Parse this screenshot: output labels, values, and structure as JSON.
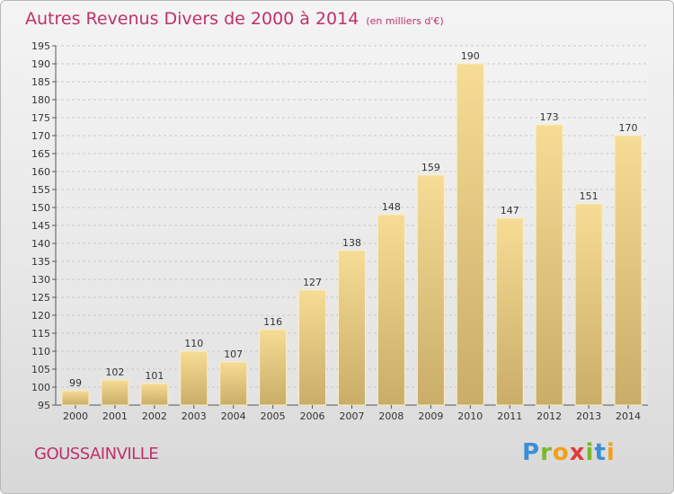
{
  "title": "Autres Revenus Divers de 2000 à 2014",
  "unit": "(en milliers d'€)",
  "place": "GOUSSAINVILLE",
  "logo": {
    "letters": [
      "P",
      "r",
      "o",
      "x",
      "i",
      "t",
      "i"
    ],
    "colors": [
      "#3a8fd6",
      "#7ab82a",
      "#f2a01a",
      "#e23b3b",
      "#7ab82a",
      "#3a8fd6",
      "#f2a01a"
    ]
  },
  "colors": {
    "title": "#c0306a",
    "bar_top": "#f6dc95",
    "bar_bottom": "#c9ad68"
  },
  "chart_data": {
    "type": "bar",
    "title": "Autres Revenus Divers de 2000 à 2014",
    "subtitle": "(en milliers d'€)",
    "categories": [
      "2000",
      "2001",
      "2002",
      "2003",
      "2004",
      "2005",
      "2006",
      "2007",
      "2008",
      "2009",
      "2010",
      "2011",
      "2012",
      "2013",
      "2014"
    ],
    "values": [
      99,
      102,
      101,
      110,
      107,
      116,
      127,
      138,
      148,
      159,
      190,
      147,
      173,
      151,
      170
    ],
    "ylim": [
      95,
      195
    ],
    "yticks": [
      95,
      100,
      105,
      110,
      115,
      120,
      125,
      130,
      135,
      140,
      145,
      150,
      155,
      160,
      165,
      170,
      175,
      180,
      185,
      190,
      195
    ],
    "grid": true,
    "xlabel": "",
    "ylabel": ""
  }
}
